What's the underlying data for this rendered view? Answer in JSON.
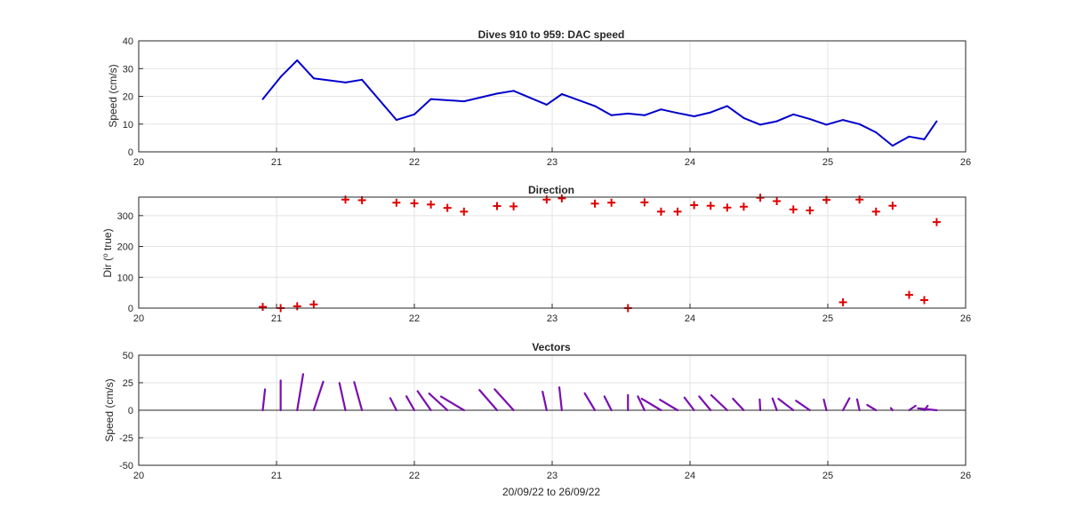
{
  "chart_data": [
    {
      "type": "line",
      "title": "Dives 910 to 959: DAC speed",
      "xlabel": "",
      "ylabel": "Speed (cm/s)",
      "xlim": [
        20,
        26
      ],
      "ylim": [
        0,
        40
      ],
      "xticks": [
        "20",
        "21",
        "22",
        "23",
        "24",
        "25",
        "26"
      ],
      "yticks": [
        "0",
        "10",
        "20",
        "30",
        "40"
      ],
      "grid": true,
      "color": "#0000cc",
      "x": [
        20.9,
        21.03,
        21.15,
        21.27,
        21.5,
        21.62,
        21.87,
        22.0,
        22.12,
        22.36,
        22.6,
        22.72,
        22.96,
        23.07,
        23.31,
        23.43,
        23.55,
        23.67,
        23.79,
        23.91,
        24.03,
        24.15,
        24.27,
        24.39,
        24.51,
        24.63,
        24.75,
        24.87,
        24.99,
        25.11,
        25.23,
        25.35,
        25.47,
        25.59,
        25.7,
        25.79
      ],
      "y": [
        19,
        27,
        33,
        26.5,
        25,
        26,
        11.5,
        13.5,
        19,
        18.2,
        21,
        22,
        17,
        20.8,
        16.5,
        13.2,
        13.8,
        13.2,
        15.3,
        14,
        12.8,
        14.2,
        16.5,
        12.2,
        9.8,
        11,
        13.5,
        11.8,
        9.8,
        11.5,
        10,
        7,
        2.2,
        5.5,
        4.5,
        11
      ]
    },
    {
      "type": "scatter",
      "title": "Direction",
      "xlabel": "",
      "ylabel_prefix": "Dir (",
      "ylabel_sup": "o",
      "ylabel_suffix": " true)",
      "xlim": [
        20,
        26
      ],
      "ylim": [
        0,
        360
      ],
      "xticks": [
        "20",
        "21",
        "22",
        "23",
        "24",
        "25",
        "26"
      ],
      "yticks": [
        "0",
        "100",
        "200",
        "300"
      ],
      "grid": true,
      "marker": "+",
      "color": "#e00000",
      "x": [
        20.9,
        21.03,
        21.15,
        21.27,
        21.5,
        21.62,
        21.87,
        22.0,
        22.12,
        22.24,
        22.36,
        22.6,
        22.72,
        22.96,
        23.07,
        23.31,
        23.43,
        23.55,
        23.67,
        23.79,
        23.91,
        24.03,
        24.15,
        24.27,
        24.39,
        24.51,
        24.63,
        24.75,
        24.87,
        24.99,
        25.11,
        25.23,
        25.35,
        25.47,
        25.59,
        25.7,
        25.79
      ],
      "y": [
        4,
        0,
        6,
        12,
        352,
        350,
        342,
        340,
        336,
        325,
        313,
        331,
        330,
        352,
        356,
        339,
        342,
        0,
        343,
        313,
        313,
        334,
        332,
        326,
        329,
        358,
        347,
        320,
        317,
        351,
        19,
        352,
        313,
        332,
        43,
        26,
        279
      ]
    },
    {
      "type": "vector",
      "title": "Vectors",
      "xlabel": "20/09/22 to 26/09/22",
      "ylabel": "Speed (cm/s)",
      "xlim": [
        20,
        26
      ],
      "ylim": [
        -50,
        50
      ],
      "xticks": [
        "20",
        "21",
        "22",
        "23",
        "24",
        "25",
        "26"
      ],
      "yticks": [
        "-50",
        "-25",
        "0",
        "25",
        "50"
      ],
      "grid": true,
      "color": "#7a0fb0",
      "x": [
        20.9,
        21.03,
        21.15,
        21.27,
        21.5,
        21.62,
        21.87,
        22.0,
        22.12,
        22.24,
        22.36,
        22.6,
        22.72,
        22.96,
        23.07,
        23.31,
        23.43,
        23.55,
        23.67,
        23.79,
        23.91,
        24.03,
        24.15,
        24.27,
        24.39,
        24.51,
        24.63,
        24.75,
        24.87,
        24.99,
        25.11,
        25.23,
        25.35,
        25.47,
        25.59,
        25.7,
        25.79
      ],
      "speed": [
        19,
        27,
        33,
        26.5,
        25,
        26,
        11.5,
        13.5,
        19,
        18.5,
        18.2,
        21,
        22,
        17,
        20.8,
        16.5,
        13.2,
        13.8,
        13.2,
        15.3,
        14,
        12.8,
        14.2,
        16.5,
        12.2,
        9.8,
        11,
        13.5,
        11.8,
        9.8,
        11.5,
        10,
        7,
        2.2,
        5.5,
        4.5,
        11
      ],
      "dir": [
        4,
        0,
        6,
        12,
        352,
        350,
        342,
        340,
        336,
        325,
        313,
        331,
        330,
        352,
        356,
        339,
        342,
        0,
        343,
        313,
        313,
        334,
        332,
        326,
        329,
        358,
        347,
        320,
        317,
        351,
        19,
        352,
        313,
        332,
        43,
        26,
        279
      ]
    }
  ]
}
